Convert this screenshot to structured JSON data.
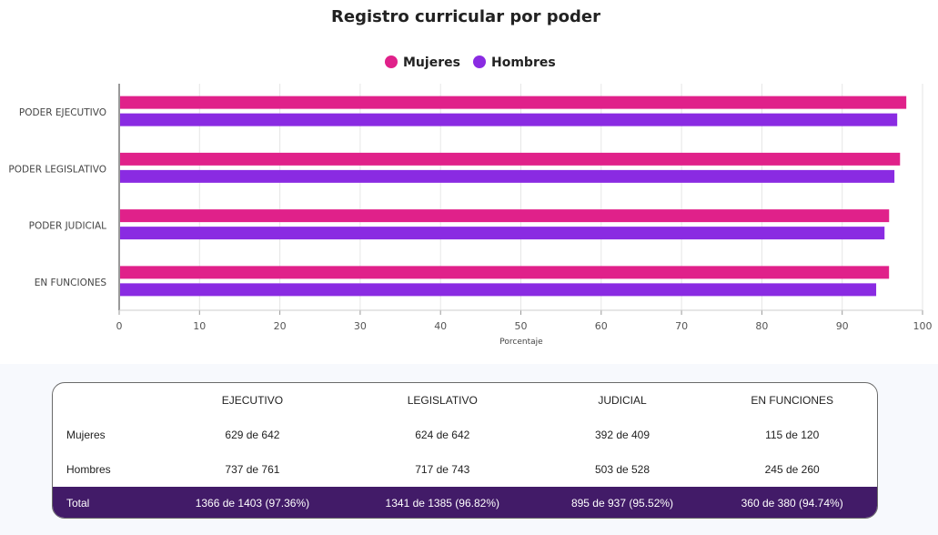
{
  "chart_data": {
    "type": "bar",
    "orientation": "horizontal",
    "title": "Registro curricular por poder",
    "categories": [
      "PODER EJECUTIVO",
      "PODER LEGISLATIVO",
      "PODER JUDICIAL",
      "EN FUNCIONES"
    ],
    "series": [
      {
        "name": "Mujeres",
        "color": "#e0218a",
        "values": [
          97.98,
          97.2,
          95.84,
          95.83
        ]
      },
      {
        "name": "Hombres",
        "color": "#8a2be2",
        "values": [
          96.85,
          96.5,
          95.27,
          94.23
        ]
      }
    ],
    "xlabel": "Porcentaje",
    "ylabel": "",
    "xlim": [
      0,
      100
    ],
    "xticks": [
      "0",
      "10",
      "20",
      "30",
      "40",
      "50",
      "60",
      "70",
      "80",
      "90",
      "100"
    ],
    "grid": true,
    "legend": "top-center"
  },
  "table": {
    "headers": [
      "",
      "EJECUTIVO",
      "LEGISLATIVO",
      "JUDICIAL",
      "EN FUNCIONES"
    ],
    "rows": [
      {
        "label": "Mujeres",
        "cells": [
          "629 de 642",
          "624 de 642",
          "392 de 409",
          "115 de 120"
        ]
      },
      {
        "label": "Hombres",
        "cells": [
          "737 de 761",
          "717 de 743",
          "503 de 528",
          "245 de 260"
        ]
      }
    ],
    "total": {
      "label": "Total",
      "cells": [
        "1366 de 1403 (97.36%)",
        "1341 de 1385 (96.82%)",
        "895 de 937 (95.52%)",
        "360 de 380 (94.74%)"
      ]
    }
  }
}
